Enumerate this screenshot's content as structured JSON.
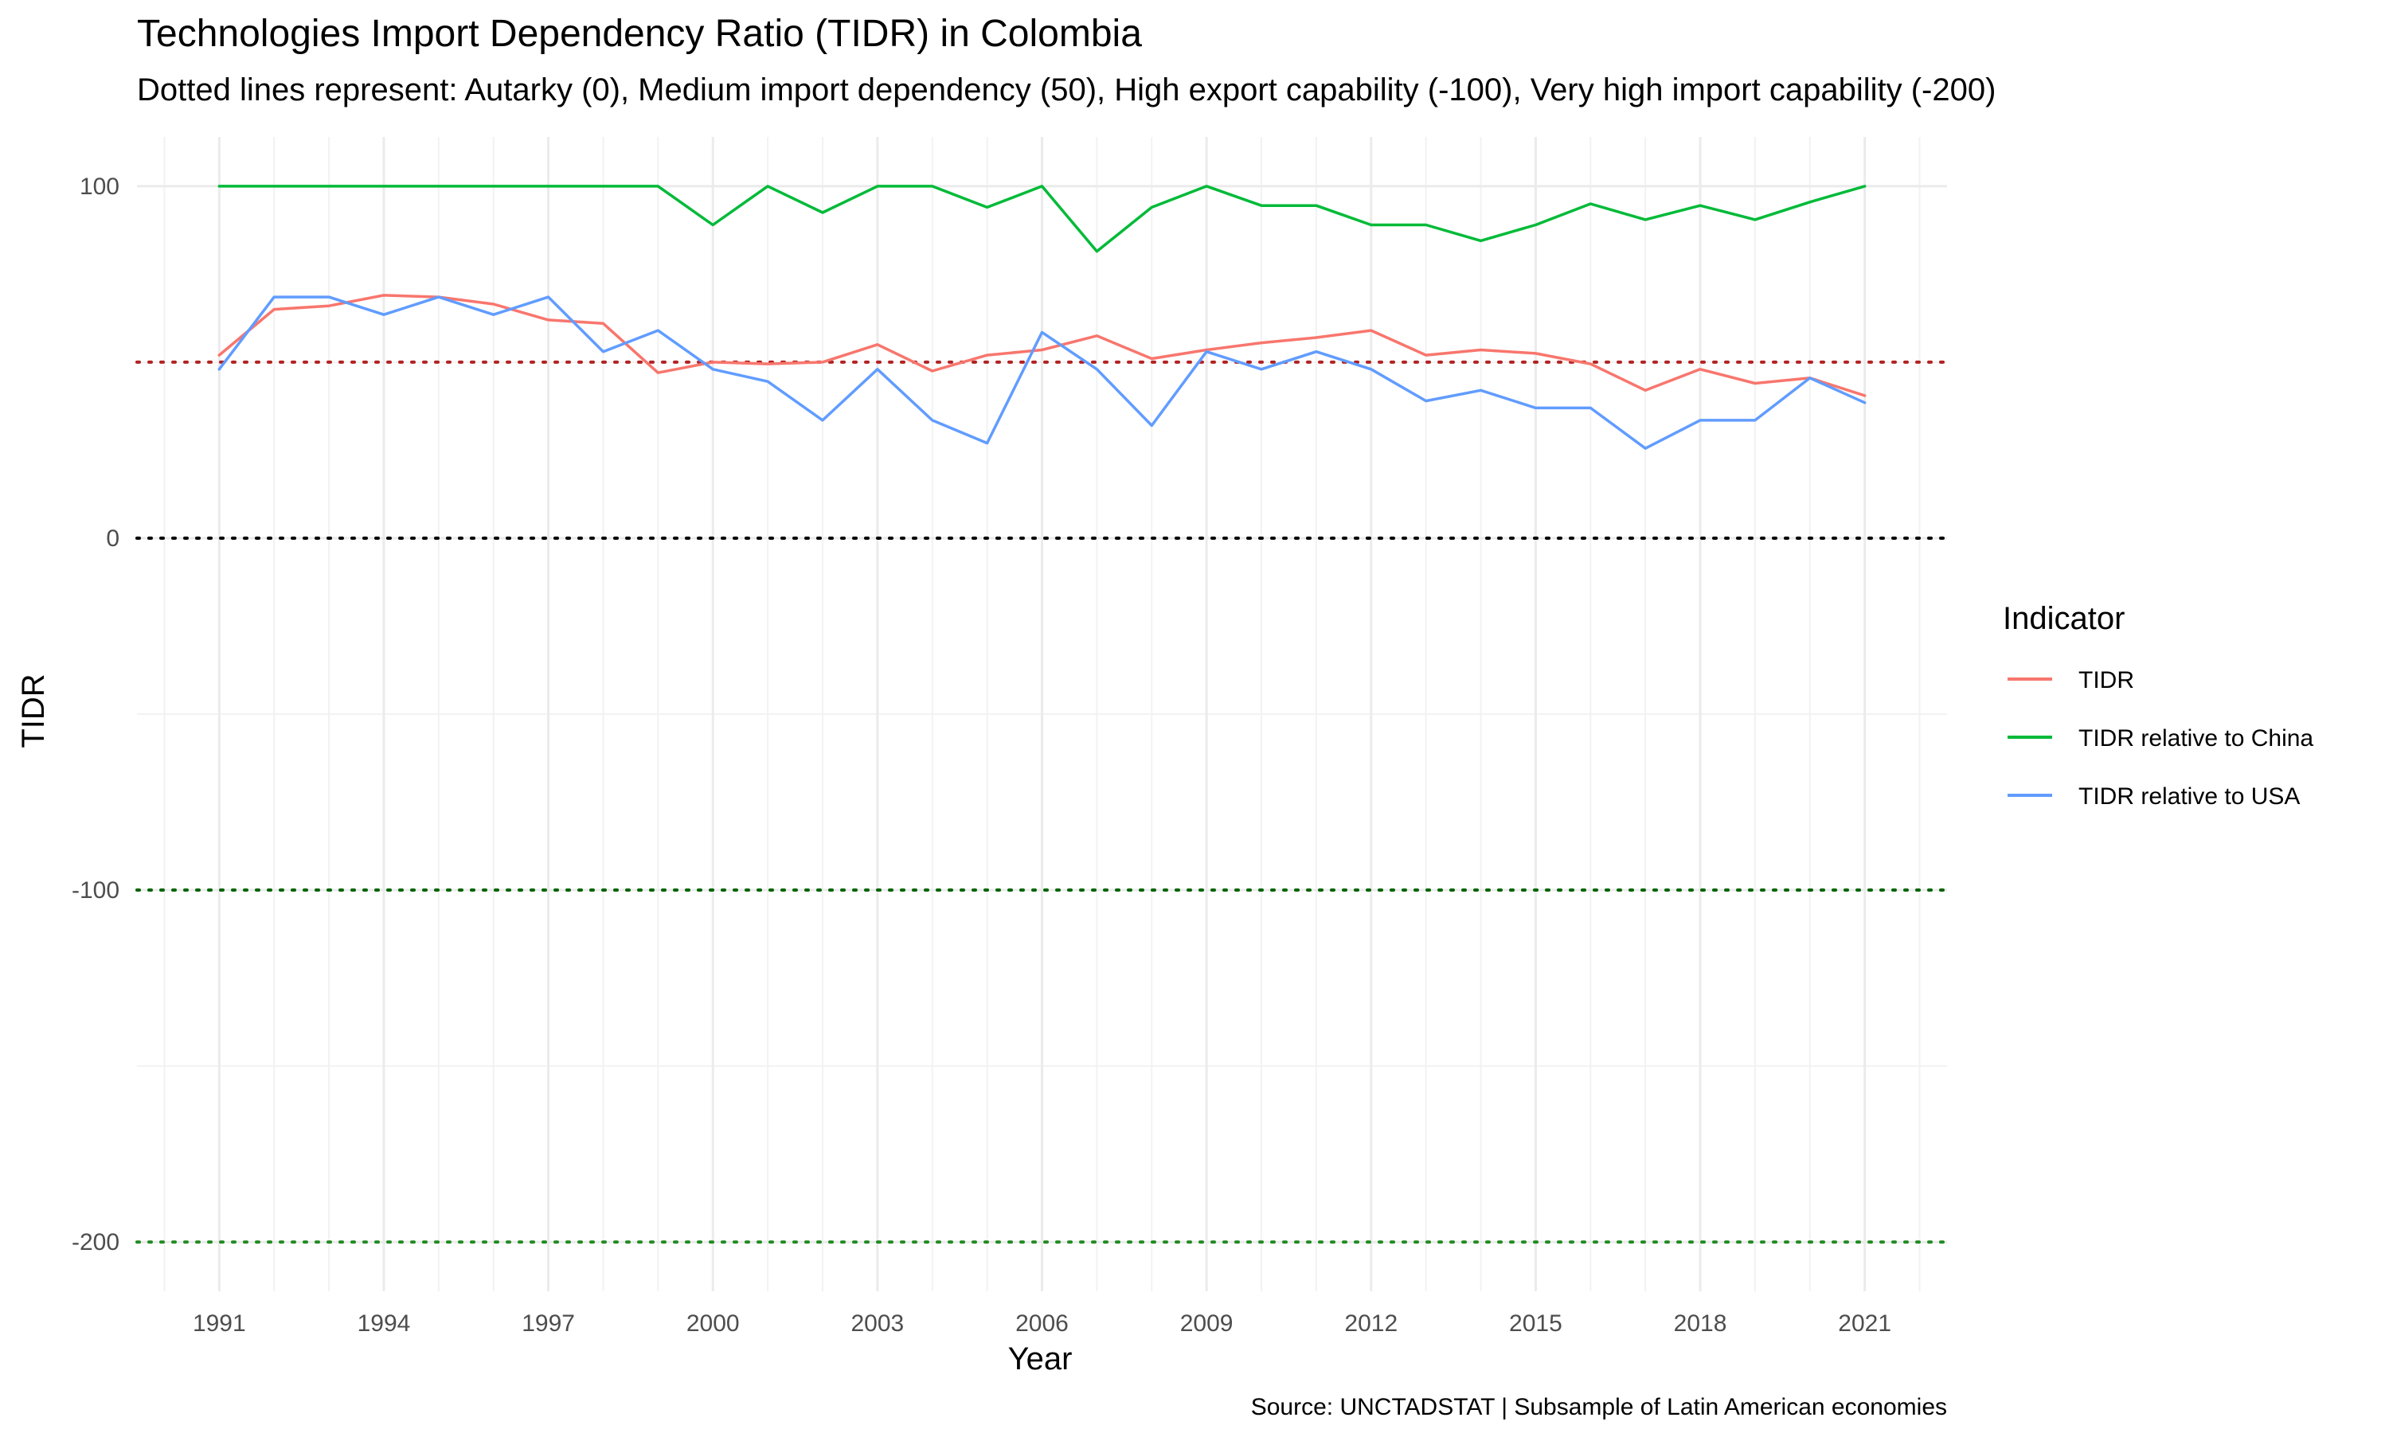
{
  "chart_data": {
    "type": "line",
    "title": "Technologies Import Dependency Ratio (TIDR) in Colombia",
    "subtitle": "Dotted lines represent: Autarky (0), Medium import dependency (50), High export capability (-100), Very high import capability (-200)",
    "xlabel": "Year",
    "ylabel": "TIDR",
    "caption": "Source: UNCTADSTAT | Subsample of Latin American economies",
    "legend_title": "Indicator",
    "legend_position": "right",
    "xlim": [
      1989.5,
      2022.5
    ],
    "ylim": [
      -214,
      114
    ],
    "x_ticks": [
      1991,
      1994,
      1997,
      2000,
      2003,
      2006,
      2009,
      2012,
      2015,
      2018,
      2021
    ],
    "x_tick_labels": [
      "1991",
      "1994",
      "1997",
      "2000",
      "2003",
      "2006",
      "2009",
      "2012",
      "2015",
      "2018",
      "2021"
    ],
    "y_ticks": [
      -200,
      -100,
      0,
      100
    ],
    "y_tick_labels": [
      "-200",
      "-100",
      "0",
      "100"
    ],
    "y_minor_ticks": [
      -150,
      -50,
      50
    ],
    "grid": true,
    "reference_lines": [
      {
        "value": 50,
        "label": "Medium import dependency",
        "color": "#b22222"
      },
      {
        "value": 0,
        "label": "Autarky",
        "color": "#000000"
      },
      {
        "value": -100,
        "label": "High export capability",
        "color": "#006400"
      },
      {
        "value": -200,
        "label": "Very high import capability",
        "color": "#228b22"
      }
    ],
    "x": [
      1991,
      1992,
      1993,
      1994,
      1995,
      1996,
      1997,
      1998,
      1999,
      2000,
      2001,
      2002,
      2003,
      2004,
      2005,
      2006,
      2007,
      2008,
      2009,
      2010,
      2011,
      2012,
      2013,
      2014,
      2015,
      2016,
      2017,
      2018,
      2019,
      2020,
      2021
    ],
    "series": [
      {
        "name": "TIDR",
        "color": "#f8766d",
        "values": [
          52,
          65,
          66,
          69,
          68.5,
          66.5,
          62,
          61,
          47,
          50,
          49.5,
          50,
          55,
          47.5,
          52,
          53.5,
          57.5,
          51,
          53.5,
          55.5,
          57,
          59,
          52,
          53.5,
          52.5,
          49.5,
          42,
          48,
          44,
          45.5,
          40.5
        ]
      },
      {
        "name": "TIDR relative to China",
        "color": "#00ba38",
        "values": [
          100,
          100,
          100,
          100,
          100,
          100,
          100,
          100,
          100,
          89,
          100,
          92.5,
          100,
          100,
          94,
          100,
          81.5,
          94,
          100,
          94.5,
          94.5,
          89,
          89,
          84.5,
          89,
          95,
          90.5,
          94.5,
          90.5,
          95.5,
          100
        ]
      },
      {
        "name": "TIDR relative to USA",
        "color": "#619cff",
        "values": [
          48,
          68.5,
          68.5,
          63.5,
          68.5,
          63.5,
          68.5,
          53,
          59,
          48,
          44.5,
          33.5,
          48,
          33.5,
          27,
          58.5,
          48,
          32,
          53,
          48,
          53,
          48,
          39,
          42,
          37,
          37,
          25.5,
          33.5,
          33.5,
          45.5,
          38.5
        ]
      }
    ]
  }
}
